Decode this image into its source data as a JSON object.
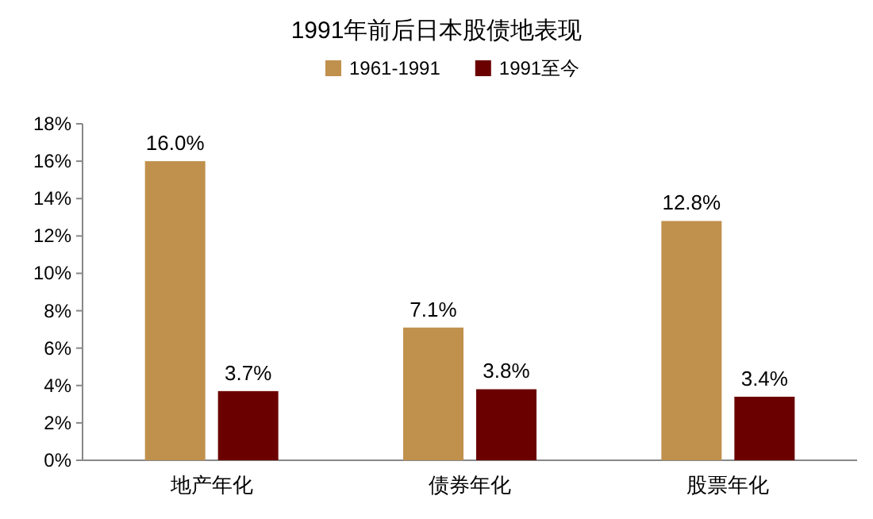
{
  "chart_data": {
    "type": "bar",
    "title": "1991年前后日本股债地表现",
    "categories": [
      "地产年化",
      "债券年化",
      "股票年化"
    ],
    "series": [
      {
        "name": "1961-1991",
        "color": "#c0904d",
        "values": [
          16.0,
          7.1,
          12.8
        ],
        "value_labels": [
          "16.0%",
          "7.1%",
          "12.8%"
        ]
      },
      {
        "name": "1991至今",
        "color": "#6b0000",
        "values": [
          3.7,
          3.8,
          3.4
        ],
        "value_labels": [
          "3.7%",
          "3.8%",
          "3.4%"
        ]
      }
    ],
    "ylim": [
      0,
      18
    ],
    "yticks": [
      {
        "value": 0,
        "label": "0%"
      },
      {
        "value": 2,
        "label": "2%"
      },
      {
        "value": 4,
        "label": "4%"
      },
      {
        "value": 6,
        "label": "6%"
      },
      {
        "value": 8,
        "label": "8%"
      },
      {
        "value": 10,
        "label": "10%"
      },
      {
        "value": 12,
        "label": "12%"
      },
      {
        "value": 14,
        "label": "14%"
      },
      {
        "value": 16,
        "label": "16%"
      },
      {
        "value": 18,
        "label": "18%"
      }
    ],
    "legend": "top",
    "grid": false
  }
}
